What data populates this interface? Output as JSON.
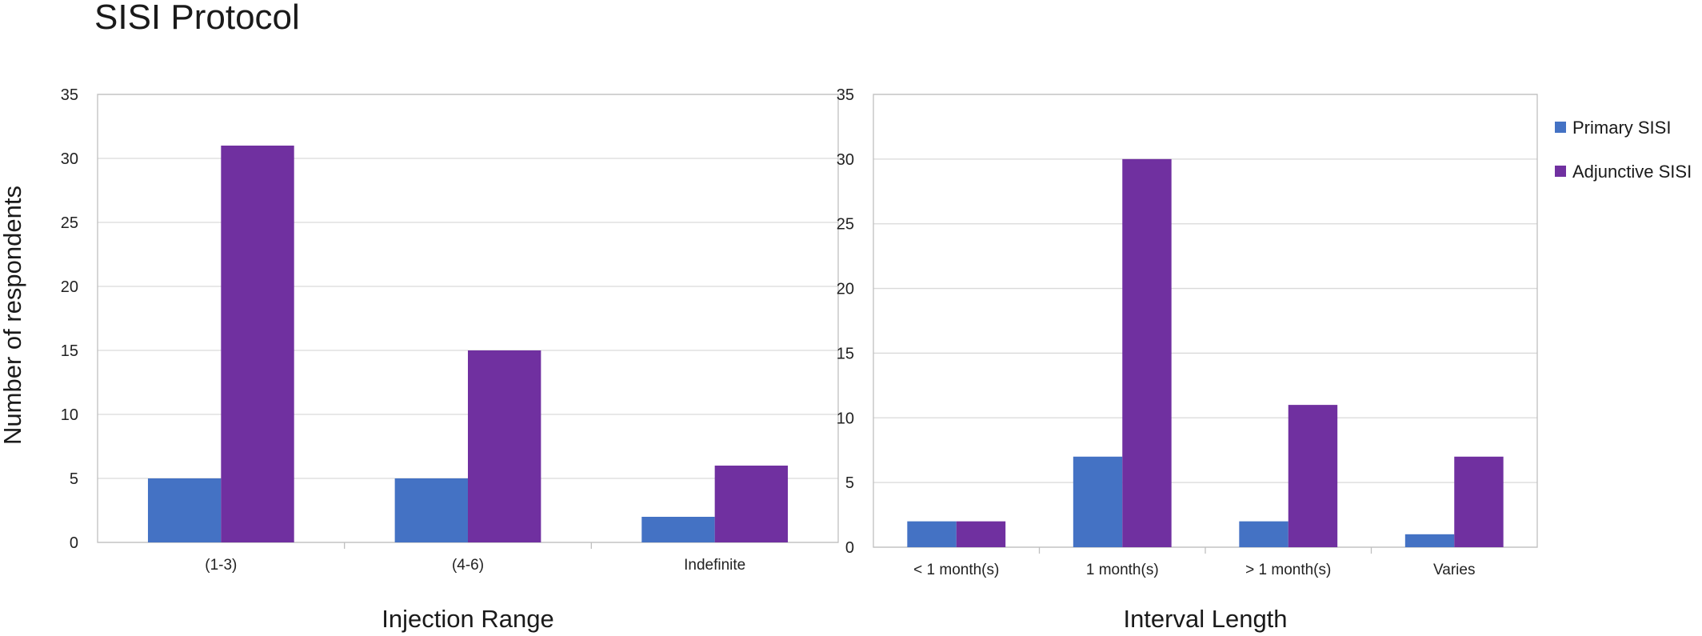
{
  "title": "SISI Protocol",
  "ylabel": "Number of respondents",
  "colors": {
    "primary": "#4472C4",
    "adjunctive": "#7030A0",
    "grid": "#D9D9D9",
    "frame": "#BFBFBF"
  },
  "legend": {
    "position": "right",
    "items": [
      "Primary SISI",
      "Adjunctive SISI"
    ]
  },
  "chart_data": [
    {
      "type": "bar",
      "xlabel": "Injection Range",
      "ylabel": "Number of respondents",
      "ylim": [
        0,
        35
      ],
      "yticks": [
        "0",
        "5",
        "10",
        "15",
        "20",
        "25",
        "30",
        "35"
      ],
      "grid": true,
      "categories": [
        "(1-3)",
        "(4-6)",
        "Indefinite"
      ],
      "series": [
        {
          "name": "Primary SISI",
          "values": [
            5,
            5,
            2
          ]
        },
        {
          "name": "Adjunctive SISI",
          "values": [
            31,
            15,
            6
          ]
        }
      ]
    },
    {
      "type": "bar",
      "xlabel": "Interval Length",
      "ylim": [
        0,
        35
      ],
      "yticks": [
        "0",
        "5",
        "10",
        "15",
        "20",
        "25",
        "30",
        "35"
      ],
      "grid": true,
      "categories": [
        "< 1 month(s)",
        "1 month(s)",
        "> 1 month(s)",
        "Varies"
      ],
      "series": [
        {
          "name": "Primary SISI",
          "values": [
            2,
            7,
            2,
            1
          ]
        },
        {
          "name": "Adjunctive SISI",
          "values": [
            2,
            30,
            11,
            7
          ]
        }
      ]
    }
  ]
}
